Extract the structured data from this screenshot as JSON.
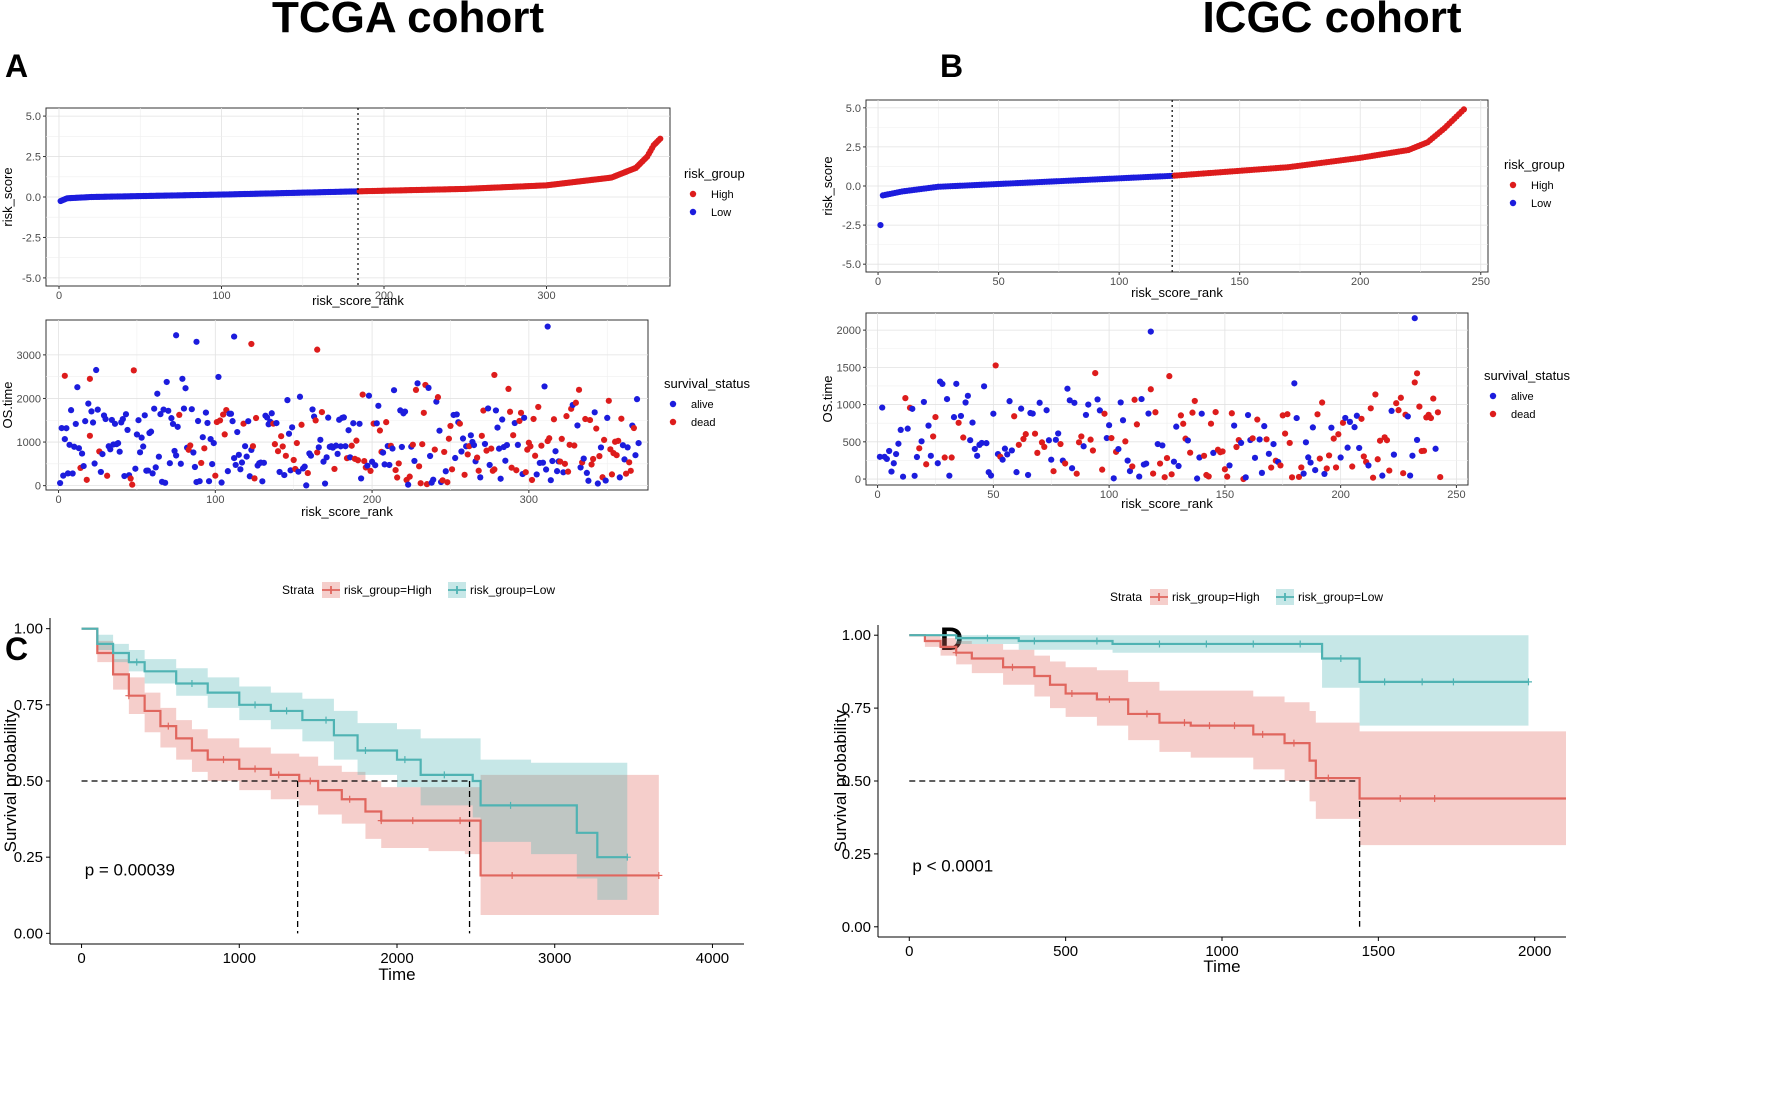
{
  "figure": {
    "titles": {
      "left": "TCGA cohort",
      "right": "ICGC cohort"
    },
    "labels": {
      "A": "A",
      "B": "B",
      "C": "C",
      "D": "D"
    }
  },
  "chart_data": [
    {
      "id": "A_top",
      "type": "scatter",
      "panel": "A",
      "title": "",
      "xlabel": "risk_score_rank",
      "ylabel": "risk_score",
      "xlim": [
        -8,
        376
      ],
      "ylim": [
        -5.5,
        5.5
      ],
      "xticks": [
        0,
        100,
        200,
        300
      ],
      "yticks": [
        -5.0,
        -2.5,
        0.0,
        2.5,
        5.0
      ],
      "ytick_labels": [
        "-5.0",
        "-2.5",
        "0.0",
        "2.5",
        "5.0"
      ],
      "cutoff_rank": 184,
      "n": 370,
      "curve_knots": [
        [
          1,
          -0.25
        ],
        [
          5,
          -0.08
        ],
        [
          20,
          0.0
        ],
        [
          100,
          0.15
        ],
        [
          184,
          0.35
        ],
        [
          250,
          0.5
        ],
        [
          300,
          0.72
        ],
        [
          340,
          1.2
        ],
        [
          355,
          1.8
        ],
        [
          362,
          2.5
        ],
        [
          366,
          3.2
        ],
        [
          370,
          3.6
        ]
      ],
      "legend": {
        "title": "risk_group",
        "entries": [
          "High",
          "Low"
        ],
        "colors": [
          "#dd1c1c",
          "#1c1cdd"
        ]
      }
    },
    {
      "id": "A_bottom",
      "type": "scatter",
      "panel": "A",
      "title": "",
      "xlabel": "risk_score_rank",
      "ylabel": "OS.time",
      "xlim": [
        -8,
        376
      ],
      "ylim": [
        -100,
        3800
      ],
      "xticks": [
        0,
        100,
        200,
        300
      ],
      "yticks": [
        0,
        1000,
        2000,
        3000
      ],
      "n": 370,
      "seed": 7,
      "highlighted_points": [
        [
          75,
          3450,
          "alive"
        ],
        [
          112,
          3420,
          "alive"
        ],
        [
          123,
          3250,
          "dead"
        ],
        [
          88,
          3300,
          "alive"
        ],
        [
          165,
          3120,
          "dead"
        ],
        [
          312,
          3650,
          "alive"
        ],
        [
          278,
          2540,
          "dead"
        ],
        [
          4,
          2520,
          "dead"
        ],
        [
          20,
          2450,
          "dead"
        ]
      ],
      "legend": {
        "title": "survival_status",
        "entries": [
          "alive",
          "dead"
        ],
        "colors": [
          "#1c1cdd",
          "#dd1c1c"
        ]
      }
    },
    {
      "id": "B_top",
      "type": "scatter",
      "panel": "B",
      "title": "",
      "xlabel": "risk_score_rank",
      "ylabel": "risk_score",
      "xlim": [
        -5,
        253
      ],
      "ylim": [
        -5.5,
        5.5
      ],
      "xticks": [
        0,
        50,
        100,
        150,
        200,
        250
      ],
      "yticks": [
        -5.0,
        -2.5,
        0.0,
        2.5,
        5.0
      ],
      "ytick_labels": [
        "-5.0",
        "-2.5",
        "0.0",
        "2.5",
        "5.0"
      ],
      "cutoff_rank": 122,
      "n": 243,
      "outliers": [
        [
          1,
          -2.5
        ]
      ],
      "curve_knots": [
        [
          2,
          -0.6
        ],
        [
          10,
          -0.35
        ],
        [
          25,
          -0.05
        ],
        [
          60,
          0.2
        ],
        [
          122,
          0.65
        ],
        [
          170,
          1.2
        ],
        [
          200,
          1.8
        ],
        [
          220,
          2.3
        ],
        [
          228,
          2.8
        ],
        [
          235,
          3.7
        ],
        [
          243,
          4.9
        ]
      ],
      "legend": {
        "title": "risk_group",
        "entries": [
          "High",
          "Low"
        ],
        "colors": [
          "#dd1c1c",
          "#1c1cdd"
        ]
      }
    },
    {
      "id": "B_bottom",
      "type": "scatter",
      "panel": "B",
      "title": "",
      "xlabel": "risk_score_rank",
      "ylabel": "OS.time",
      "xlim": [
        -5,
        255
      ],
      "ylim": [
        -80,
        2230
      ],
      "xticks": [
        0,
        50,
        100,
        150,
        200,
        250
      ],
      "yticks": [
        0,
        500,
        1000,
        1500,
        2000
      ],
      "n": 243,
      "seed": 11,
      "highlighted_points": [
        [
          232,
          2160,
          "alive"
        ],
        [
          118,
          1980,
          "alive"
        ],
        [
          233,
          1420,
          "dead"
        ]
      ],
      "legend": {
        "title": "survival_status",
        "entries": [
          "alive",
          "dead"
        ],
        "colors": [
          "#1c1cdd",
          "#dd1c1c"
        ]
      }
    },
    {
      "id": "C_km",
      "type": "line",
      "panel": "C",
      "title": "",
      "xlabel": "Time",
      "ylabel": "Survival probability",
      "xlim": [
        -200,
        4200
      ],
      "ylim": [
        -0.035,
        1.035
      ],
      "xticks": [
        0,
        1000,
        2000,
        3000,
        4000
      ],
      "yticks": [
        0.0,
        0.25,
        0.5,
        0.75,
        1.0
      ],
      "ytick_labels": [
        "0.00",
        "0.25",
        "0.50",
        "0.75",
        "1.00"
      ],
      "legend": {
        "title": "Strata",
        "entries": [
          "risk_group=High",
          "risk_group=Low"
        ],
        "colors": [
          "#e0665e",
          "#4fb3b3"
        ]
      },
      "pvalue_text": "p = 0.00039",
      "median_lines": [
        1370,
        2460
      ],
      "series": [
        {
          "name": "risk_group=High",
          "color": "#e0665e",
          "x": [
            0,
            100,
            200,
            300,
            400,
            500,
            600,
            700,
            800,
            1000,
            1200,
            1380,
            1500,
            1650,
            1800,
            1900,
            2200,
            2430,
            2530,
            3660
          ],
          "y": [
            1.0,
            0.92,
            0.85,
            0.78,
            0.73,
            0.68,
            0.64,
            0.6,
            0.57,
            0.54,
            0.52,
            0.5,
            0.47,
            0.44,
            0.4,
            0.37,
            0.37,
            0.37,
            0.19,
            0.19
          ],
          "lower": [
            1.0,
            0.89,
            0.8,
            0.72,
            0.66,
            0.61,
            0.57,
            0.53,
            0.5,
            0.47,
            0.44,
            0.42,
            0.39,
            0.36,
            0.31,
            0.28,
            0.27,
            0.26,
            0.06,
            0.06
          ],
          "upper": [
            1.0,
            0.96,
            0.9,
            0.84,
            0.79,
            0.74,
            0.7,
            0.67,
            0.64,
            0.61,
            0.59,
            0.58,
            0.55,
            0.53,
            0.5,
            0.48,
            0.48,
            0.48,
            0.52,
            0.52
          ],
          "censor_x": [
            300,
            550,
            900,
            1100,
            1250,
            1450,
            1700,
            1900,
            2100,
            2400,
            2730,
            3660
          ]
        },
        {
          "name": "risk_group=Low",
          "color": "#4fb3b3",
          "x": [
            0,
            100,
            200,
            300,
            400,
            600,
            800,
            1000,
            1200,
            1400,
            1600,
            1750,
            2000,
            2150,
            2480,
            2530,
            2850,
            3140,
            3270,
            3460
          ],
          "y": [
            1.0,
            0.95,
            0.92,
            0.89,
            0.86,
            0.82,
            0.79,
            0.75,
            0.73,
            0.7,
            0.65,
            0.6,
            0.57,
            0.52,
            0.5,
            0.42,
            0.42,
            0.33,
            0.25,
            0.25
          ],
          "lower": [
            1.0,
            0.93,
            0.89,
            0.86,
            0.82,
            0.78,
            0.74,
            0.7,
            0.67,
            0.63,
            0.57,
            0.52,
            0.48,
            0.42,
            0.38,
            0.3,
            0.26,
            0.18,
            0.11,
            0.11
          ],
          "upper": [
            1.0,
            0.98,
            0.95,
            0.93,
            0.9,
            0.87,
            0.84,
            0.81,
            0.79,
            0.77,
            0.73,
            0.69,
            0.67,
            0.64,
            0.64,
            0.57,
            0.56,
            0.56,
            0.56,
            0.56
          ],
          "censor_x": [
            350,
            700,
            1100,
            1300,
            1550,
            1800,
            2050,
            2300,
            2720,
            3460
          ]
        }
      ]
    },
    {
      "id": "D_km",
      "type": "line",
      "panel": "D",
      "title": "",
      "xlabel": "Time",
      "ylabel": "Survival probability",
      "xlim": [
        -100,
        2100
      ],
      "ylim": [
        -0.035,
        1.035
      ],
      "xticks": [
        0,
        500,
        1000,
        1500,
        2000
      ],
      "yticks": [
        0.0,
        0.25,
        0.5,
        0.75,
        1.0
      ],
      "ytick_labels": [
        "0.00",
        "0.25",
        "0.50",
        "0.75",
        "1.00"
      ],
      "legend": {
        "title": "Strata",
        "entries": [
          "risk_group=High",
          "risk_group=Low"
        ],
        "colors": [
          "#e0665e",
          "#4fb3b3"
        ]
      },
      "pvalue_text": "p < 0.0001",
      "median_lines": [
        1440
      ],
      "series": [
        {
          "name": "risk_group=High",
          "color": "#e0665e",
          "x": [
            0,
            50,
            100,
            150,
            200,
            300,
            400,
            450,
            500,
            600,
            700,
            800,
            900,
            1000,
            1100,
            1200,
            1280,
            1300,
            1440,
            2100
          ],
          "y": [
            1.0,
            0.98,
            0.96,
            0.94,
            0.92,
            0.89,
            0.86,
            0.83,
            0.8,
            0.78,
            0.73,
            0.7,
            0.69,
            0.69,
            0.66,
            0.63,
            0.57,
            0.51,
            0.44,
            0.44
          ],
          "lower": [
            1.0,
            0.96,
            0.93,
            0.9,
            0.87,
            0.83,
            0.79,
            0.75,
            0.72,
            0.69,
            0.64,
            0.6,
            0.58,
            0.58,
            0.54,
            0.5,
            0.43,
            0.37,
            0.28,
            0.28
          ],
          "upper": [
            1.0,
            1.0,
            0.99,
            0.98,
            0.97,
            0.95,
            0.93,
            0.91,
            0.89,
            0.88,
            0.84,
            0.81,
            0.81,
            0.81,
            0.79,
            0.77,
            0.74,
            0.7,
            0.67,
            0.67
          ],
          "censor_x": [
            150,
            330,
            520,
            640,
            760,
            880,
            960,
            1040,
            1130,
            1230,
            1340,
            1570,
            1680
          ]
        },
        {
          "name": "risk_group=Low",
          "color": "#4fb3b3",
          "x": [
            0,
            150,
            350,
            650,
            1320,
            1440,
            1980
          ],
          "y": [
            1.0,
            0.99,
            0.98,
            0.97,
            0.92,
            0.84,
            0.84
          ],
          "lower": [
            1.0,
            0.97,
            0.95,
            0.94,
            0.82,
            0.69,
            0.69
          ],
          "upper": [
            1.0,
            1.0,
            1.0,
            1.0,
            1.0,
            1.0,
            1.0
          ],
          "censor_x": [
            250,
            400,
            600,
            800,
            950,
            1100,
            1250,
            1380,
            1520,
            1640,
            1740,
            1980
          ]
        }
      ]
    }
  ]
}
